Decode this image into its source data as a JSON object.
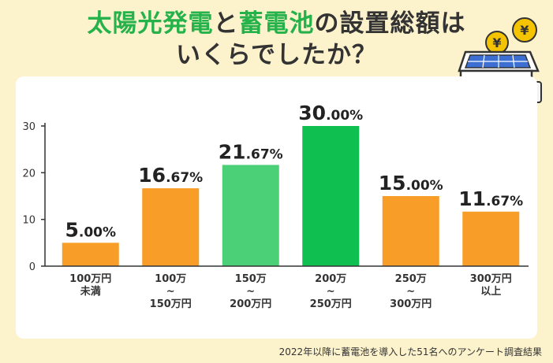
{
  "title": {
    "line1_a": "太陽光発電",
    "line1_b": "と",
    "line1_c": "蓄電池",
    "line1_d": "の設置総額は",
    "line2": "いくらでしたか？"
  },
  "footnote": "2022年以降に蓄電池を導入した51名へのアンケート調査結果",
  "colors": {
    "background": "#fcf2cc",
    "title_accent": "#25b24a",
    "bar_orange": "#f99d29",
    "bar_light_green": "#4bcf77",
    "bar_green": "#0fc050"
  },
  "chart_data": {
    "type": "bar",
    "title": "",
    "xlabel": "",
    "ylabel": "",
    "ylim": [
      0,
      30
    ],
    "yticks": [
      0,
      10,
      20,
      30
    ],
    "grid": false,
    "categories": [
      [
        "100万円",
        "未満"
      ],
      [
        "100万",
        "~",
        "150万円"
      ],
      [
        "150万",
        "~",
        "200万円"
      ],
      [
        "200万",
        "~",
        "250万円"
      ],
      [
        "250万",
        "~",
        "300万円"
      ],
      [
        "300万円",
        "以上"
      ]
    ],
    "values": [
      5.0,
      16.67,
      21.67,
      30.0,
      15.0,
      11.67
    ],
    "label_int": [
      "5",
      "16",
      "21",
      "30",
      "15",
      "11"
    ],
    "label_dec": [
      ".00%",
      ".67%",
      ".67%",
      ".00%",
      ".00%",
      ".67%"
    ],
    "bar_colors": [
      "#f99d29",
      "#f99d29",
      "#4bcf77",
      "#0fc050",
      "#f99d29",
      "#f99d29"
    ]
  }
}
